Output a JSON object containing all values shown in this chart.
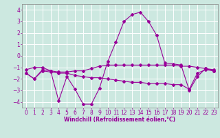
{
  "title": "",
  "xlabel": "Windchill (Refroidissement éolien,°C)",
  "ylabel": "",
  "background_color": "#cce8e0",
  "grid_color": "#ffffff",
  "line_color": "#990099",
  "xlim": [
    -0.5,
    23.5
  ],
  "ylim": [
    -4.5,
    4.5
  ],
  "yticks": [
    -4,
    -3,
    -2,
    -1,
    0,
    1,
    2,
    3,
    4
  ],
  "xticks": [
    0,
    1,
    2,
    3,
    4,
    5,
    6,
    7,
    8,
    9,
    10,
    11,
    12,
    13,
    14,
    15,
    16,
    17,
    18,
    19,
    20,
    21,
    22,
    23
  ],
  "line1": [
    -1.5,
    -2.0,
    -1.2,
    -1.3,
    -3.9,
    -1.8,
    -2.9,
    -4.2,
    -4.2,
    -2.8,
    -0.5,
    1.2,
    3.0,
    3.6,
    3.8,
    3.0,
    1.8,
    -0.6,
    -0.7,
    -0.8,
    -3.0,
    -1.8,
    -1.1,
    -1.3
  ],
  "line2": [
    -1.2,
    -1.0,
    -1.0,
    -1.3,
    -1.4,
    -1.4,
    -1.3,
    -1.3,
    -1.1,
    -0.9,
    -0.8,
    -0.8,
    -0.8,
    -0.8,
    -0.8,
    -0.8,
    -0.8,
    -0.8,
    -0.8,
    -0.9,
    -0.9,
    -1.0,
    -1.1,
    -1.2
  ],
  "line3": [
    -1.5,
    -2.0,
    -1.3,
    -1.4,
    -1.5,
    -1.5,
    -1.7,
    -1.8,
    -1.9,
    -1.9,
    -2.0,
    -2.1,
    -2.2,
    -2.3,
    -2.3,
    -2.4,
    -2.4,
    -2.4,
    -2.5,
    -2.5,
    -2.9,
    -1.5,
    -1.2,
    -1.3
  ],
  "tick_labelsize": 5.5,
  "xlabel_fontsize": 5.5
}
